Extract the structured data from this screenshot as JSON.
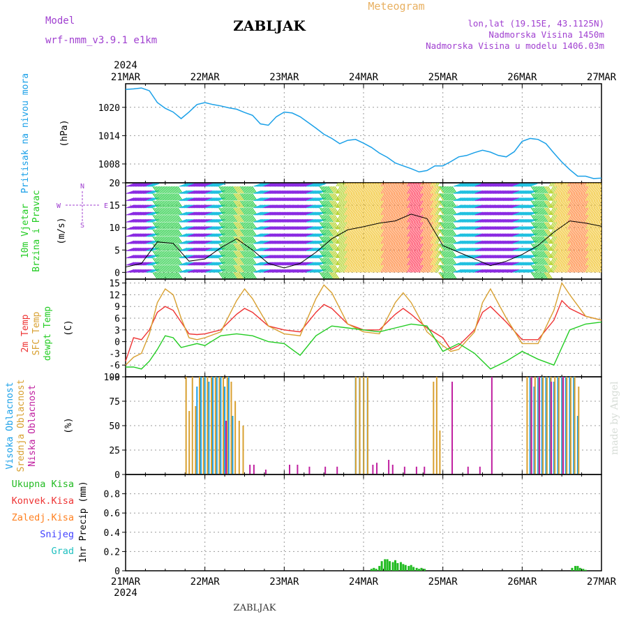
{
  "header": {
    "model_label": "Model",
    "model_name": "wrf-nmm_v3.9.1  e1km",
    "station": "ZABLJAK",
    "product": "Meteogram",
    "lonlat": "lon,lat (19.15E, 43.1125N)",
    "elevation": "Nadmorska Visina 1450m",
    "model_elevation": "Nadmorska Visina u modelu 1406.03m",
    "footer_station": "ZABLJAK",
    "credit": "made by Angel"
  },
  "colors": {
    "pressure": "#1aa0e8",
    "wind_label": "#22cc22",
    "legend_purple": "#a040d0",
    "temp2m": "#ee3333",
    "sfc": "#d8a030",
    "dewpt": "#22cc22",
    "cloud_high": "#1aa0e8",
    "cloud_mid": "#d8a030",
    "cloud_low": "#c020a0",
    "precip_total": "#22bb22",
    "precip_conv": "#ee3333",
    "precip_frz": "#ff8020",
    "precip_snow": "#4040ff",
    "precip_hail": "#20c0c0"
  },
  "chart_data": [
    {
      "type": "line",
      "panel": "pressure",
      "ylabel": "Pritisak na nivou mora",
      "unit": "(hPa)",
      "ylim": [
        1004,
        1025
      ],
      "yticks": [
        1008,
        1014,
        1020
      ],
      "x_day_range": [
        21,
        27
      ],
      "x_axis_labels": [
        "21MAR",
        "22MAR",
        "23MAR",
        "24MAR",
        "25MAR",
        "26MAR",
        "27MAR"
      ],
      "x_axis_year": "2024",
      "series": [
        {
          "x": [
            21.0,
            21.1,
            21.2,
            21.3,
            21.4,
            21.5,
            21.6,
            21.7,
            21.8,
            21.9,
            22.0,
            22.1,
            22.2,
            22.3,
            22.4,
            22.5,
            22.6,
            22.7,
            22.8,
            22.9,
            23.0,
            23.1,
            23.2,
            23.3,
            23.4,
            23.5,
            23.6,
            23.7,
            23.8,
            23.9,
            24.0,
            24.1,
            24.2,
            24.3,
            24.4,
            24.5,
            24.6,
            24.7,
            24.8,
            24.9,
            25.0,
            25.1,
            25.2,
            25.3,
            25.4,
            25.5,
            25.6,
            25.7,
            25.8,
            25.9,
            26.0,
            26.1,
            26.2,
            26.3,
            26.4,
            26.5,
            26.6,
            26.7,
            26.8,
            26.9,
            27.0
          ],
          "values": [
            1023.8,
            1023.9,
            1024.1,
            1023.5,
            1021.0,
            1019.8,
            1019.0,
            1017.6,
            1019.0,
            1020.6,
            1021.0,
            1020.6,
            1020.3,
            1019.9,
            1019.6,
            1018.9,
            1018.3,
            1016.5,
            1016.2,
            1018.0,
            1019.0,
            1018.8,
            1018.0,
            1016.8,
            1015.6,
            1014.3,
            1013.4,
            1012.3,
            1013.0,
            1013.2,
            1012.4,
            1011.5,
            1010.3,
            1009.4,
            1008.2,
            1007.6,
            1007.0,
            1006.3,
            1006.6,
            1007.6,
            1007.6,
            1008.5,
            1009.5,
            1009.8,
            1010.4,
            1010.9,
            1010.5,
            1009.8,
            1009.5,
            1010.6,
            1012.8,
            1013.4,
            1013.2,
            1012.3,
            1010.3,
            1008.4,
            1006.8,
            1005.4,
            1005.4,
            1004.9,
            1005.0
          ]
        }
      ]
    },
    {
      "type": "line",
      "panel": "wind",
      "ylabel": "10m Vjetar Brzina i Pravac",
      "unit": "(m/s)",
      "direction_legend": [
        "W",
        "E",
        "N",
        "S"
      ],
      "ylim": [
        -1.5,
        20
      ],
      "yticks": [
        0,
        5,
        10,
        15,
        20
      ],
      "series": [
        {
          "name": "speed",
          "x": [
            21.0,
            21.2,
            21.4,
            21.6,
            21.8,
            22.0,
            22.2,
            22.4,
            22.6,
            22.8,
            23.0,
            23.2,
            23.4,
            23.6,
            23.8,
            24.0,
            24.2,
            24.4,
            24.6,
            24.8,
            25.0,
            25.2,
            25.4,
            25.6,
            25.8,
            26.0,
            26.2,
            26.4,
            26.6,
            26.8,
            27.0
          ],
          "values": [
            1.2,
            2.0,
            6.8,
            6.5,
            2.5,
            3.0,
            5.5,
            7.5,
            5.0,
            2.0,
            1.0,
            2.0,
            4.5,
            7.5,
            9.5,
            10.2,
            11.0,
            11.5,
            13.0,
            12.0,
            6.0,
            4.5,
            3.0,
            1.5,
            2.5,
            4.0,
            6.0,
            9.0,
            11.5,
            11.0,
            10.3
          ]
        }
      ]
    },
    {
      "type": "line",
      "panel": "temperature",
      "ylabel": [
        "2m Temp",
        "SFC Temp",
        "dewpt Temp"
      ],
      "unit": "(C)",
      "ylim": [
        -9,
        16
      ],
      "yticks": [
        -9,
        -6,
        -3,
        0,
        3,
        6,
        9,
        12,
        15
      ],
      "series": [
        {
          "name": "2m Temp",
          "x": [
            21.0,
            21.1,
            21.2,
            21.3,
            21.4,
            21.5,
            21.6,
            21.7,
            21.8,
            21.9,
            22.0,
            22.2,
            22.4,
            22.5,
            22.6,
            22.8,
            23.0,
            23.2,
            23.4,
            23.5,
            23.6,
            23.8,
            24.0,
            24.2,
            24.4,
            24.5,
            24.6,
            24.8,
            25.0,
            25.1,
            25.2,
            25.4,
            25.5,
            25.6,
            25.8,
            26.0,
            26.2,
            26.4,
            26.5,
            26.6,
            26.8,
            27.0
          ],
          "values": [
            -5.0,
            1.0,
            0.5,
            3.0,
            7.5,
            9.0,
            8.0,
            5.0,
            2.0,
            1.8,
            2.0,
            3.0,
            7.0,
            8.5,
            7.5,
            4.0,
            3.0,
            2.5,
            7.5,
            9.5,
            8.5,
            4.5,
            3.0,
            3.0,
            7.0,
            8.5,
            7.0,
            3.5,
            1.0,
            -2.0,
            -1.0,
            3.0,
            7.5,
            9.0,
            5.0,
            0.5,
            0.5,
            5.5,
            10.5,
            8.5,
            6.5,
            5.5
          ]
        },
        {
          "name": "SFC Temp",
          "x": [
            21.0,
            21.1,
            21.2,
            21.3,
            21.4,
            21.5,
            21.6,
            21.7,
            21.8,
            21.9,
            22.0,
            22.2,
            22.4,
            22.5,
            22.6,
            22.8,
            23.0,
            23.2,
            23.4,
            23.5,
            23.6,
            23.8,
            24.0,
            24.2,
            24.4,
            24.5,
            24.6,
            24.8,
            25.0,
            25.1,
            25.2,
            25.4,
            25.5,
            25.6,
            25.8,
            26.0,
            26.2,
            26.4,
            26.5,
            26.6,
            26.8,
            27.0
          ],
          "values": [
            -6.0,
            -4.0,
            -3.0,
            2.0,
            10.0,
            13.5,
            12.0,
            6.0,
            1.0,
            0.5,
            1.0,
            2.5,
            10.5,
            13.5,
            11.0,
            4.0,
            2.0,
            1.5,
            11.0,
            14.5,
            12.5,
            4.5,
            2.5,
            2.0,
            10.0,
            12.5,
            10.0,
            2.5,
            -1.0,
            -2.5,
            -2.0,
            2.5,
            10.0,
            13.5,
            6.0,
            -0.5,
            -0.5,
            8.0,
            15.0,
            12.0,
            6.5,
            5.5
          ]
        },
        {
          "name": "dewpt Temp",
          "x": [
            21.0,
            21.1,
            21.2,
            21.3,
            21.4,
            21.5,
            21.6,
            21.7,
            21.8,
            21.9,
            22.0,
            22.2,
            22.4,
            22.6,
            22.8,
            23.0,
            23.2,
            23.4,
            23.6,
            23.8,
            24.0,
            24.2,
            24.4,
            24.6,
            24.8,
            25.0,
            25.1,
            25.2,
            25.4,
            25.6,
            25.8,
            26.0,
            26.2,
            26.4,
            26.6,
            26.8,
            27.0
          ],
          "values": [
            -6.5,
            -6.5,
            -7.0,
            -5.0,
            -2.0,
            1.5,
            1.0,
            -1.5,
            -1.0,
            -0.5,
            -1.0,
            1.5,
            2.0,
            1.5,
            0.0,
            -0.5,
            -3.5,
            1.5,
            4.0,
            3.5,
            3.0,
            2.5,
            3.5,
            4.5,
            4.0,
            -2.5,
            -1.5,
            -0.5,
            -3.0,
            -7.0,
            -5.0,
            -2.5,
            -4.5,
            -6.0,
            3.0,
            4.5,
            5.0
          ]
        }
      ]
    },
    {
      "type": "bar",
      "panel": "clouds",
      "ylabel": [
        "Visoka Oblacnost",
        "Srednja Oblacnost",
        "Niska Oblacnost"
      ],
      "unit": "(%)",
      "ylim": [
        0,
        100
      ],
      "yticks": [
        0,
        25,
        50,
        75,
        100
      ],
      "series": [
        {
          "name": "Visoka Oblacnost",
          "x": [
            21.9,
            21.95,
            22.0,
            22.05,
            22.1,
            22.15,
            22.2,
            22.25,
            22.3,
            22.35,
            23.9,
            23.95,
            24.0,
            24.05,
            26.1,
            26.15,
            26.2,
            26.25,
            26.3,
            26.35,
            26.4,
            26.45,
            26.5,
            26.55,
            26.6,
            26.65,
            26.7
          ],
          "values": [
            90,
            100,
            100,
            95,
            100,
            100,
            100,
            90,
            100,
            60,
            100,
            100,
            100,
            100,
            100,
            90,
            100,
            100,
            100,
            100,
            95,
            100,
            100,
            100,
            100,
            100,
            60
          ]
        },
        {
          "name": "Srednja Oblacnost",
          "x": [
            21.78,
            21.82,
            21.86,
            21.9,
            21.95,
            22.0,
            22.05,
            22.1,
            22.15,
            22.2,
            22.25,
            22.3,
            22.35,
            22.4,
            22.45,
            22.5,
            23.92,
            23.97,
            24.02,
            24.07,
            24.9,
            24.94,
            24.98,
            26.08,
            26.13,
            26.18,
            26.23,
            26.28,
            26.33,
            26.38,
            26.43,
            26.48,
            26.53,
            26.58,
            26.63,
            26.68,
            26.73
          ],
          "values": [
            100,
            65,
            100,
            70,
            100,
            100,
            100,
            100,
            100,
            100,
            100,
            100,
            95,
            75,
            55,
            50,
            100,
            100,
            100,
            100,
            95,
            100,
            45,
            100,
            100,
            100,
            100,
            100,
            100,
            100,
            100,
            100,
            100,
            100,
            100,
            100,
            90
          ]
        },
        {
          "name": "Niska Oblacnost",
          "x": [
            22.25,
            22.55,
            22.6,
            22.75,
            23.05,
            23.15,
            23.3,
            23.5,
            23.65,
            24.1,
            24.15,
            24.3,
            24.35,
            24.5,
            24.65,
            24.75,
            25.1,
            25.3,
            25.45,
            25.6,
            26.1,
            26.2,
            26.35,
            26.5
          ],
          "values": [
            55,
            10,
            10,
            5,
            10,
            10,
            8,
            8,
            8,
            10,
            12,
            15,
            10,
            8,
            8,
            8,
            95,
            8,
            8,
            100,
            100,
            100,
            95,
            100
          ]
        }
      ]
    },
    {
      "type": "bar",
      "panel": "precip",
      "ylabel": "1hr Precip",
      "unit": "(mm)",
      "legend": [
        "Ukupna Kisa",
        "Konvek.Kisa",
        "Zaledj.Kisa",
        "Snijeg",
        "Grad"
      ],
      "ylim": [
        0,
        1.0
      ],
      "yticks": [
        0,
        0.2,
        0.4,
        0.6,
        0.8
      ],
      "series": [
        {
          "name": "Ukupna Kisa",
          "x": [
            24.1,
            24.13,
            24.16,
            24.2,
            24.23,
            24.27,
            24.3,
            24.33,
            24.37,
            24.4,
            24.43,
            24.47,
            24.5,
            24.53,
            24.57,
            24.6,
            24.63,
            24.67,
            24.7,
            24.73,
            24.77,
            26.63,
            26.67,
            26.7,
            26.73,
            26.77,
            26.8
          ],
          "values": [
            0.02,
            0.03,
            0.02,
            0.05,
            0.1,
            0.12,
            0.12,
            0.1,
            0.09,
            0.11,
            0.08,
            0.09,
            0.07,
            0.06,
            0.05,
            0.06,
            0.04,
            0.03,
            0.02,
            0.03,
            0.02,
            0.03,
            0.05,
            0.05,
            0.03,
            0.02,
            0.01
          ]
        }
      ]
    }
  ]
}
